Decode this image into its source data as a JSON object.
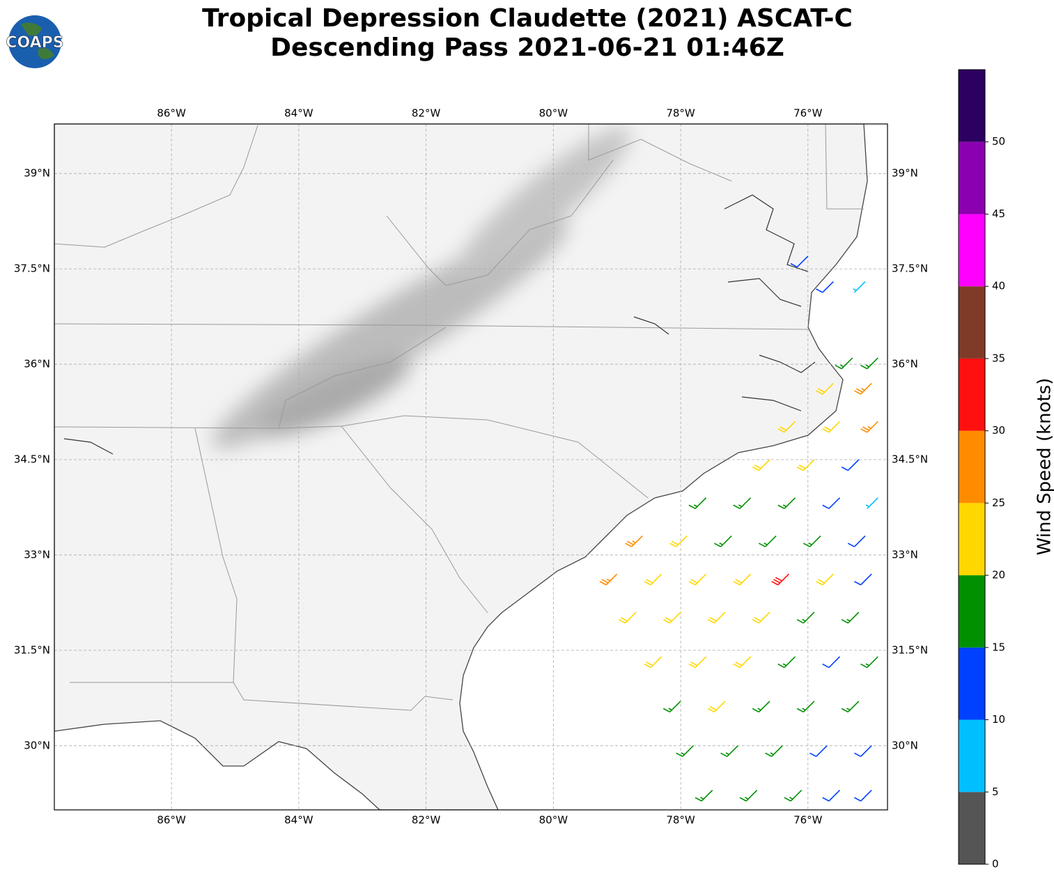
{
  "title": "Tropical Depression Claudette (2021) ASCAT-C",
  "subtitle": "Descending Pass 2021-06-21 01:46Z",
  "logo": "COAPS",
  "map": {
    "xlim": [
      -87.84,
      -74.75
    ],
    "ylim": [
      28.99,
      39.78
    ],
    "xticks": [
      {
        "value": -86,
        "label": "86°W"
      },
      {
        "value": -84,
        "label": "84°W"
      },
      {
        "value": -82,
        "label": "82°W"
      },
      {
        "value": -80,
        "label": "80°W"
      },
      {
        "value": -78,
        "label": "78°W"
      },
      {
        "value": -76,
        "label": "76°W"
      }
    ],
    "yticks": [
      {
        "value": 30,
        "label": "30°N"
      },
      {
        "value": 31.5,
        "label": "31.5°N"
      },
      {
        "value": 33,
        "label": "33°N"
      },
      {
        "value": 34.5,
        "label": "34.5°N"
      },
      {
        "value": 36,
        "label": "36°N"
      },
      {
        "value": 37.5,
        "label": "37.5°N"
      },
      {
        "value": 39,
        "label": "39°N"
      }
    ],
    "grid": true
  },
  "colorbar": {
    "label": "Wind Speed (knots)",
    "lim": [
      0,
      55
    ],
    "bounds": [
      0,
      5,
      10,
      15,
      20,
      25,
      30,
      35,
      40,
      45,
      50,
      55
    ],
    "colors": [
      "#555555",
      "#00bfff",
      "#0040ff",
      "#009000",
      "#ffd700",
      "#ff8c00",
      "#ff1010",
      "#803a28",
      "#ff00ff",
      "#8b00b0",
      "#2c0060"
    ],
    "ticks": [
      0,
      5,
      10,
      15,
      20,
      25,
      30,
      35,
      40,
      45,
      50
    ]
  },
  "barbs": {
    "direction_deg": 225,
    "lon": [
      -77.5,
      -76.8,
      -76.1,
      -75.5,
      -75.0,
      -77.8,
      -77.1,
      -76.4,
      -75.7,
      -75.0,
      -78.0,
      -77.3,
      -76.6,
      -75.9,
      -75.2,
      -78.3,
      -77.6,
      -76.9,
      -76.2,
      -75.5,
      -74.9,
      -78.7,
      -78.0,
      -77.3,
      -76.6,
      -75.9,
      -75.2,
      -79.0,
      -78.3,
      -77.6,
      -76.9,
      -76.3,
      -75.6,
      -75.0,
      -78.6,
      -77.9,
      -77.2,
      -76.5,
      -75.8,
      -75.1,
      -77.6,
      -76.9,
      -76.2,
      -75.5,
      -74.9,
      -76.6,
      -75.9,
      -75.2,
      -76.2,
      -75.5,
      -74.9,
      -75.6,
      -75.0,
      -75.3,
      -74.9,
      -75.6,
      -75.1,
      -76.0
    ],
    "lat": [
      29.3,
      29.3,
      29.3,
      29.3,
      29.3,
      30.0,
      30.0,
      30.0,
      30.0,
      30.0,
      30.7,
      30.7,
      30.7,
      30.7,
      30.7,
      31.4,
      31.4,
      31.4,
      31.4,
      31.4,
      31.4,
      32.1,
      32.1,
      32.1,
      32.1,
      32.1,
      32.1,
      32.7,
      32.7,
      32.7,
      32.7,
      32.7,
      32.7,
      32.7,
      33.3,
      33.3,
      33.3,
      33.3,
      33.3,
      33.3,
      33.9,
      33.9,
      33.9,
      33.9,
      33.9,
      34.5,
      34.5,
      34.5,
      35.1,
      35.1,
      35.1,
      35.7,
      35.7,
      36.1,
      36.1,
      37.3,
      37.3,
      37.7
    ],
    "speed": [
      17,
      17,
      17,
      12,
      12,
      17,
      17,
      17,
      12,
      12,
      18,
      22,
      17,
      17,
      17,
      22,
      22,
      22,
      17,
      12,
      17,
      22,
      22,
      22,
      22,
      17,
      17,
      27,
      22,
      22,
      22,
      32,
      22,
      12,
      27,
      22,
      17,
      17,
      17,
      12,
      17,
      17,
      17,
      12,
      8,
      22,
      22,
      12,
      22,
      22,
      27,
      22,
      27,
      17,
      17,
      12,
      8,
      12
    ]
  }
}
